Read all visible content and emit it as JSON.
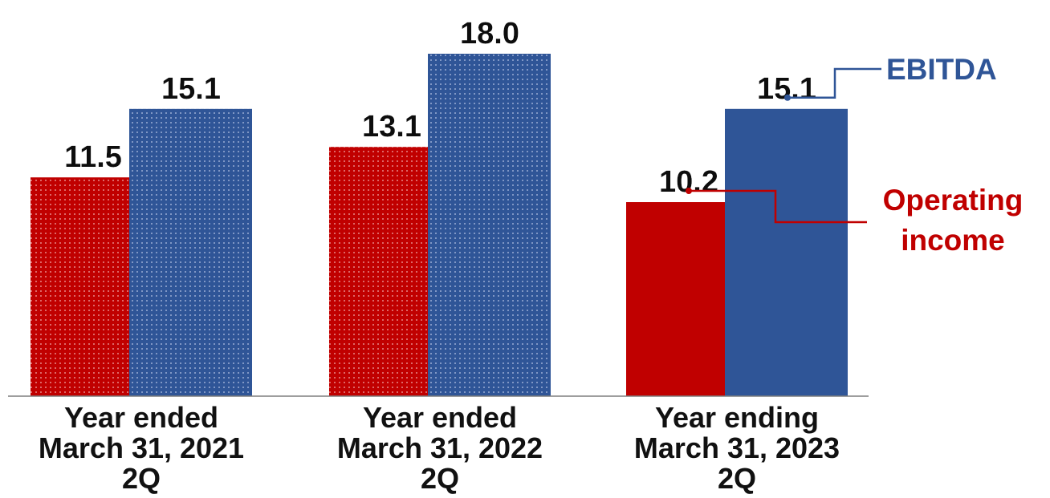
{
  "chart_data": {
    "type": "bar",
    "categories": [
      [
        "Year ended",
        "March 31, 2021",
        "2Q"
      ],
      [
        "Year ended",
        "March 31, 2022",
        "2Q"
      ],
      [
        "Year ending",
        "March 31, 2023",
        "2Q"
      ]
    ],
    "series": [
      {
        "name": "Operating income",
        "name_lines": [
          "Operating",
          "income"
        ],
        "values": [
          11.5,
          13.1,
          10.2
        ],
        "labels": [
          "11.5",
          "13.1",
          "10.2"
        ],
        "color": "#c00000",
        "patterned": [
          true,
          true,
          false
        ]
      },
      {
        "name": "EBITDA",
        "name_lines": [
          "EBITDA"
        ],
        "values": [
          15.1,
          18.0,
          15.1
        ],
        "labels": [
          "15.1",
          "18.0",
          "15.1"
        ],
        "color": "#2f5597",
        "patterned": [
          true,
          true,
          false
        ]
      }
    ],
    "ylim": [
      0,
      20
    ],
    "grid": false,
    "legend": "callouts-right"
  }
}
